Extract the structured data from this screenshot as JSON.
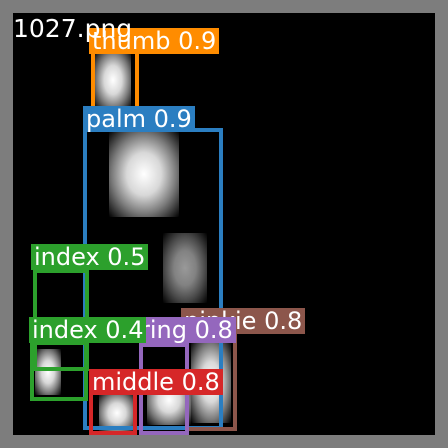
{
  "image": {
    "filename": "1027.png",
    "frame_color": "#7d7d7d",
    "background_color": "#000000"
  },
  "detections": {
    "thumb": {
      "label": "thumb 0.9",
      "color": "#ff8c00"
    },
    "palm": {
      "label": "palm 0.9",
      "color": "#2b7ec1"
    },
    "index_top": {
      "label": "index 0.5",
      "color": "#2ca02c"
    },
    "index_low": {
      "label": "index 0.4",
      "color": "#2ca02c"
    },
    "ring": {
      "label": "ring 0.8",
      "color": "#9467bd"
    },
    "pinkie": {
      "label": "pinkie 0.8",
      "color": "#8c564b"
    },
    "middle": {
      "label": "middle 0.8",
      "color": "#d62728"
    }
  }
}
